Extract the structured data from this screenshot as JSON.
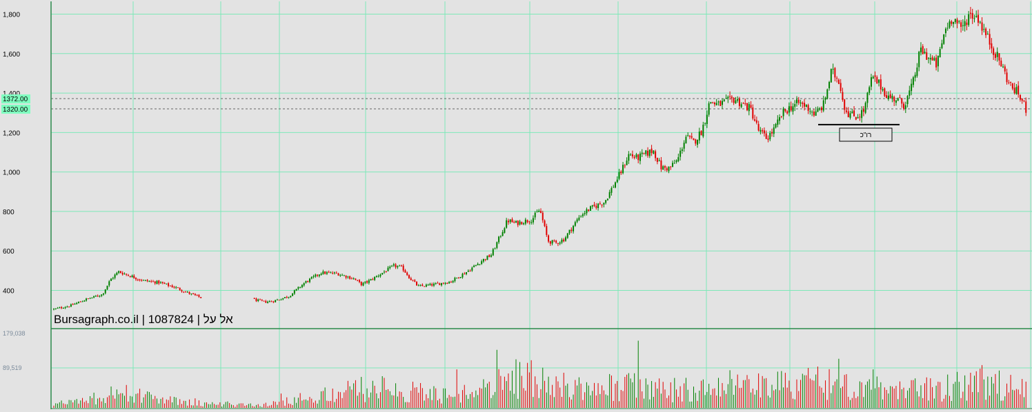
{
  "chart_data": [
    {
      "type": "candlestick",
      "title": "Bursagraph.co.il | 1087824 | אל על",
      "ylim": [
        290,
        1820
      ],
      "y_ticks": [
        {
          "value": 400,
          "label": "400"
        },
        {
          "value": 600,
          "label": "600"
        },
        {
          "value": 800,
          "label": "800"
        },
        {
          "value": 1000,
          "label": "1,000"
        },
        {
          "value": 1200,
          "label": "1,200"
        },
        {
          "value": 1400,
          "label": "1,400"
        },
        {
          "value": 1600,
          "label": "1,600"
        },
        {
          "value": 1800,
          "label": "1,800"
        }
      ],
      "reference_lines": [
        {
          "value": 1372,
          "label": "1372.00"
        },
        {
          "value": 1320,
          "label": "1320.00"
        }
      ],
      "grid": true,
      "colors": {
        "up": "#008000",
        "down": "#e00000",
        "grid": "#7de8b8",
        "background": "#e3e3e3",
        "tag": "#80ffc0"
      },
      "annotation": {
        "text": "רו\"כ",
        "support_level": 1240
      },
      "price_path": [
        {
          "x": 0,
          "y": 305
        },
        {
          "x": 2,
          "y": 322
        },
        {
          "x": 4,
          "y": 355
        },
        {
          "x": 6,
          "y": 380
        },
        {
          "x": 7,
          "y": 455
        },
        {
          "x": 8,
          "y": 495
        },
        {
          "x": 9,
          "y": 480
        },
        {
          "x": 11,
          "y": 450
        },
        {
          "x": 13,
          "y": 440
        },
        {
          "x": 15,
          "y": 415
        },
        {
          "x": 17,
          "y": 380
        },
        {
          "x": 19,
          "y": 352
        },
        {
          "x": 20,
          "y": 300
        },
        {
          "x": 20.5,
          "y": 283
        },
        {
          "x": 21,
          "y": 300
        },
        {
          "x": 22,
          "y": 305
        },
        {
          "x": 23,
          "y": 335
        },
        {
          "x": 24,
          "y": 360
        },
        {
          "x": 25,
          "y": 350
        },
        {
          "x": 26,
          "y": 342
        },
        {
          "x": 27,
          "y": 345
        },
        {
          "x": 29,
          "y": 370
        },
        {
          "x": 31,
          "y": 440
        },
        {
          "x": 33,
          "y": 490
        },
        {
          "x": 35,
          "y": 485
        },
        {
          "x": 37,
          "y": 460
        },
        {
          "x": 38,
          "y": 430
        },
        {
          "x": 39,
          "y": 450
        },
        {
          "x": 41,
          "y": 500
        },
        {
          "x": 42,
          "y": 525
        },
        {
          "x": 43,
          "y": 515
        },
        {
          "x": 44,
          "y": 460
        },
        {
          "x": 45,
          "y": 420
        },
        {
          "x": 47,
          "y": 430
        },
        {
          "x": 49,
          "y": 445
        },
        {
          "x": 51,
          "y": 495
        },
        {
          "x": 53,
          "y": 555
        },
        {
          "x": 54,
          "y": 580
        },
        {
          "x": 56,
          "y": 755
        },
        {
          "x": 57,
          "y": 740
        },
        {
          "x": 59,
          "y": 760
        },
        {
          "x": 60,
          "y": 810
        },
        {
          "x": 61,
          "y": 650
        },
        {
          "x": 62,
          "y": 640
        },
        {
          "x": 63,
          "y": 660
        },
        {
          "x": 65,
          "y": 780
        },
        {
          "x": 66,
          "y": 810
        },
        {
          "x": 68,
          "y": 850
        },
        {
          "x": 70,
          "y": 1000
        },
        {
          "x": 71,
          "y": 1090
        },
        {
          "x": 72,
          "y": 1070
        },
        {
          "x": 74,
          "y": 1110
        },
        {
          "x": 75,
          "y": 1020
        },
        {
          "x": 76,
          "y": 1020
        },
        {
          "x": 77,
          "y": 1060
        },
        {
          "x": 78,
          "y": 1180
        },
        {
          "x": 79,
          "y": 1150
        },
        {
          "x": 80,
          "y": 1210
        },
        {
          "x": 81,
          "y": 1360
        },
        {
          "x": 82,
          "y": 1340
        },
        {
          "x": 84,
          "y": 1370
        },
        {
          "x": 86,
          "y": 1320
        },
        {
          "x": 87,
          "y": 1210
        },
        {
          "x": 88,
          "y": 1170
        },
        {
          "x": 89,
          "y": 1220
        },
        {
          "x": 90,
          "y": 1300
        },
        {
          "x": 91,
          "y": 1330
        },
        {
          "x": 92,
          "y": 1350
        },
        {
          "x": 93,
          "y": 1330
        },
        {
          "x": 94,
          "y": 1290
        },
        {
          "x": 95,
          "y": 1340
        },
        {
          "x": 96,
          "y": 1510
        },
        {
          "x": 97,
          "y": 1460
        },
        {
          "x": 97.5,
          "y": 1340
        },
        {
          "x": 98,
          "y": 1300
        },
        {
          "x": 99,
          "y": 1280
        },
        {
          "x": 100,
          "y": 1310
        },
        {
          "x": 101,
          "y": 1480
        },
        {
          "x": 102,
          "y": 1440
        },
        {
          "x": 103,
          "y": 1380
        },
        {
          "x": 104,
          "y": 1370
        },
        {
          "x": 105,
          "y": 1340
        },
        {
          "x": 106,
          "y": 1440
        },
        {
          "x": 107,
          "y": 1620
        },
        {
          "x": 108,
          "y": 1580
        },
        {
          "x": 109,
          "y": 1540
        },
        {
          "x": 110,
          "y": 1720
        },
        {
          "x": 111,
          "y": 1790
        },
        {
          "x": 112,
          "y": 1720
        },
        {
          "x": 113,
          "y": 1800
        },
        {
          "x": 114,
          "y": 1790
        },
        {
          "x": 115,
          "y": 1700
        },
        {
          "x": 116,
          "y": 1620
        },
        {
          "x": 117,
          "y": 1540
        },
        {
          "x": 118,
          "y": 1440
        },
        {
          "x": 119,
          "y": 1400
        },
        {
          "x": 120,
          "y": 1320
        }
      ]
    },
    {
      "type": "bar",
      "ylim": [
        0,
        179038
      ],
      "y_ticks": [
        {
          "value": 179038,
          "label": "179,038"
        },
        {
          "value": 89519,
          "label": "89,519"
        }
      ],
      "volume_profile": [
        {
          "x": 0,
          "v": 9000
        },
        {
          "x": 5,
          "v": 25000
        },
        {
          "x": 8,
          "v": 45000
        },
        {
          "x": 12,
          "v": 25000
        },
        {
          "x": 18,
          "v": 12000
        },
        {
          "x": 26,
          "v": 8000
        },
        {
          "x": 32,
          "v": 30000
        },
        {
          "x": 40,
          "v": 55000
        },
        {
          "x": 48,
          "v": 35000
        },
        {
          "x": 52,
          "v": 38000
        },
        {
          "x": 56,
          "v": 75000
        },
        {
          "x": 59,
          "v": 85000
        },
        {
          "x": 62,
          "v": 65000
        },
        {
          "x": 66,
          "v": 45000
        },
        {
          "x": 70,
          "v": 60000
        },
        {
          "x": 76,
          "v": 50000
        },
        {
          "x": 82,
          "v": 65000
        },
        {
          "x": 88,
          "v": 55000
        },
        {
          "x": 96,
          "v": 70000
        },
        {
          "x": 104,
          "v": 60000
        },
        {
          "x": 110,
          "v": 55000
        },
        {
          "x": 115,
          "v": 70000
        },
        {
          "x": 120,
          "v": 45000
        }
      ]
    }
  ]
}
